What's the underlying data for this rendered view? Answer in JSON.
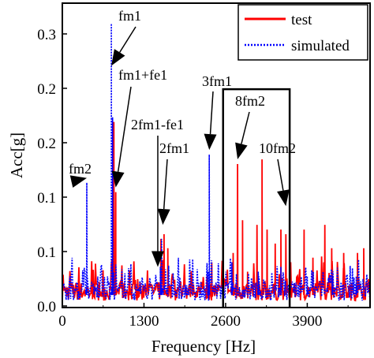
{
  "chart_data": {
    "type": "line",
    "title": "",
    "xlabel": "Frequency [Hz]",
    "ylabel": "Acc[g]",
    "xlim": [
      0,
      4900
    ],
    "x_ticks": [
      0,
      1300,
      2600,
      3900
    ],
    "y_tick_labels": [
      "0.0",
      "0.1",
      "0.1",
      "0.2",
      "0.2",
      "0.3"
    ],
    "grid": false,
    "legend_position": "top-right",
    "colors": {
      "test": "#ff0000",
      "simulated": "#0000ff"
    },
    "series": [
      {
        "name": "test",
        "style": "solid",
        "peaks": [
          [
            820,
            0.195
          ],
          [
            850,
            0.12
          ],
          [
            1570,
            0.07
          ],
          [
            1620,
            0.075
          ],
          [
            1680,
            0.06
          ],
          [
            2380,
            0.045
          ],
          [
            2560,
            0.07
          ],
          [
            2720,
            0.055
          ],
          [
            2790,
            0.15
          ],
          [
            2870,
            0.09
          ],
          [
            2950,
            0.035
          ],
          [
            3100,
            0.085
          ],
          [
            3180,
            0.155
          ],
          [
            3260,
            0.08
          ],
          [
            3390,
            0.065
          ],
          [
            3480,
            0.08
          ],
          [
            3560,
            0.075
          ],
          [
            3620,
            0.09
          ],
          [
            3850,
            0.08
          ],
          [
            3990,
            0.05
          ],
          [
            4180,
            0.085
          ],
          [
            4290,
            0.06
          ],
          [
            4480,
            0.055
          ],
          [
            4700,
            0.055
          ],
          [
            4800,
            0.06
          ]
        ]
      },
      {
        "name": "simulated",
        "style": "dotted",
        "peaks": [
          [
            390,
            0.13
          ],
          [
            780,
            0.3
          ],
          [
            800,
            0.2
          ],
          [
            1560,
            0.04
          ],
          [
            1580,
            0.07
          ],
          [
            2320,
            0.035
          ],
          [
            2340,
            0.16
          ],
          [
            2700,
            0.045
          ],
          [
            3120,
            0.035
          ],
          [
            3480,
            0.04
          ],
          [
            3900,
            0.03
          ],
          [
            4300,
            0.03
          ],
          [
            4680,
            0.03
          ]
        ]
      }
    ],
    "annotations": [
      {
        "label": "fm2",
        "x": 390,
        "y": 0.13
      },
      {
        "label": "fm1",
        "x": 780,
        "y": 0.25
      },
      {
        "label": "fm1+fe1",
        "x": 850,
        "y": 0.12
      },
      {
        "label": "2fm1-fe1",
        "x": 1520,
        "y": 0.035
      },
      {
        "label": "2fm1",
        "x": 1600,
        "y": 0.08
      },
      {
        "label": "3fm1",
        "x": 2340,
        "y": 0.16
      },
      {
        "label": "8fm2",
        "x": 2790,
        "y": 0.15
      },
      {
        "label": "10fm2",
        "x": 3560,
        "y": 0.1
      }
    ],
    "highlight_box": {
      "x_range": [
        2560,
        3620
      ],
      "y_top": 0.23
    }
  }
}
